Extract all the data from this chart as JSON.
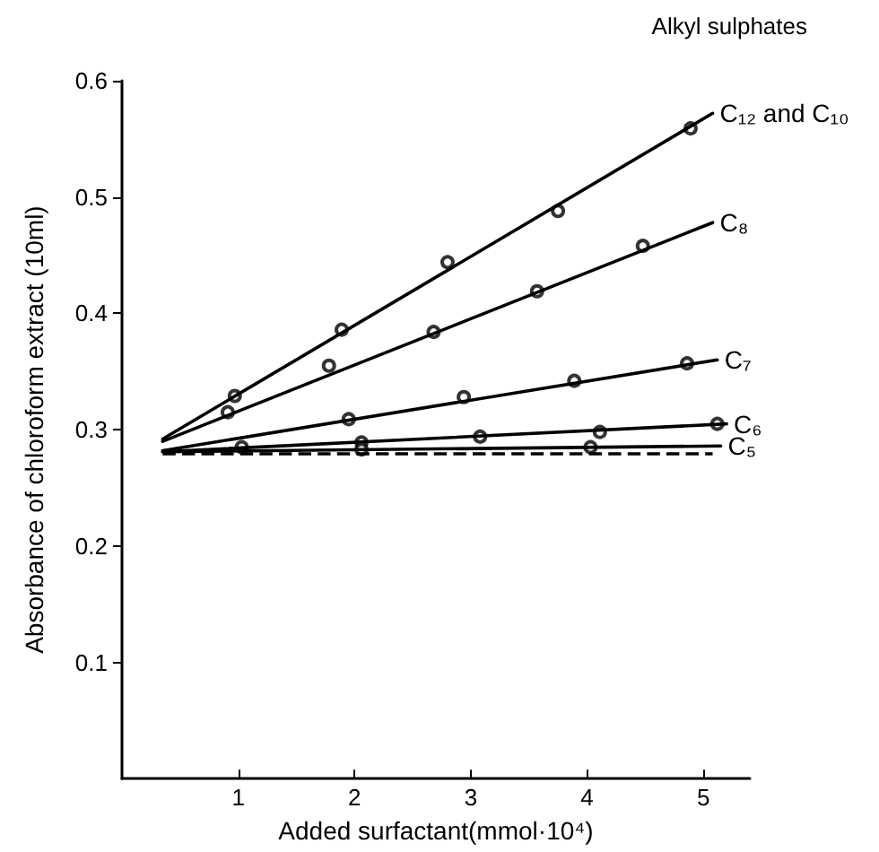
{
  "chart_data": {
    "type": "line",
    "xlabel": "Added surfactant(mmol·10⁴)",
    "ylabel": "Absorbance of chloroform extract (10ml)",
    "annotations": [
      "Alkyl sulphates"
    ],
    "xlim": [
      0,
      5.4
    ],
    "xticks": [
      1,
      2,
      3,
      4,
      5
    ],
    "ylim": [
      0,
      0.6
    ],
    "yticks": [
      0.1,
      0.2,
      0.3,
      0.4,
      0.5,
      0.6
    ],
    "grid": false,
    "legend": false,
    "series": [
      {
        "name": "C₁₂ and C₁₀",
        "type": "line",
        "marker": "none",
        "color": "#000000",
        "x": [
          0.35,
          5.08
        ],
        "values": [
          0.292,
          0.572
        ]
      },
      {
        "type": "scatter",
        "marker": "circle",
        "color": "#000000",
        "x": [
          0.97,
          1.89,
          2.8,
          3.75,
          4.89
        ],
        "values": [
          0.329,
          0.386,
          0.444,
          0.488,
          0.559
        ]
      },
      {
        "name": "C₈",
        "type": "line",
        "marker": "none",
        "color": "#000000",
        "x": [
          0.35,
          5.08
        ],
        "values": [
          0.29,
          0.478
        ]
      },
      {
        "type": "scatter",
        "marker": "circle",
        "color": "#000000",
        "x": [
          0.91,
          1.78,
          2.68,
          3.57,
          4.48
        ],
        "values": [
          0.315,
          0.355,
          0.384,
          0.419,
          0.458
        ]
      },
      {
        "name": "C₇",
        "type": "line",
        "marker": "none",
        "color": "#000000",
        "x": [
          0.35,
          5.12
        ],
        "values": [
          0.282,
          0.36
        ]
      },
      {
        "type": "scatter",
        "marker": "circle",
        "color": "#000000",
        "x": [
          1.95,
          2.94,
          3.89,
          4.86
        ],
        "values": [
          0.309,
          0.328,
          0.342,
          0.357
        ]
      },
      {
        "name": "C₆",
        "type": "line",
        "marker": "none",
        "color": "#000000",
        "x": [
          0.35,
          5.2
        ],
        "values": [
          0.281,
          0.305
        ]
      },
      {
        "type": "scatter",
        "marker": "circle",
        "color": "#000000",
        "x": [
          2.06,
          3.08,
          4.11,
          5.12
        ],
        "values": [
          0.289,
          0.294,
          0.298,
          0.305
        ]
      },
      {
        "name": "C₅",
        "type": "line",
        "marker": "none",
        "color": "#000000",
        "x": [
          0.35,
          5.15
        ],
        "values": [
          0.281,
          0.286
        ]
      },
      {
        "type": "scatter",
        "marker": "circle",
        "color": "#000000",
        "x": [
          1.03,
          2.06,
          4.03
        ],
        "values": [
          0.285,
          0.283,
          0.285
        ]
      }
    ],
    "ref_lines": [
      {
        "axis": "y",
        "value": 0.279,
        "label": null,
        "color": "#000000",
        "line_style": "dashed"
      }
    ]
  }
}
